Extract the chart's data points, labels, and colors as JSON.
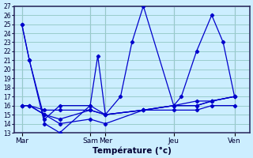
{
  "xlabel": "Température (°c)",
  "background_color": "#cceeff",
  "grid_color": "#99cccc",
  "line_color": "#0000cc",
  "ylim": [
    13,
    27
  ],
  "yticks": [
    13,
    14,
    15,
    16,
    17,
    18,
    19,
    20,
    21,
    22,
    23,
    24,
    25,
    26,
    27
  ],
  "xtick_labels": [
    "Mar",
    "Sam",
    "Mer",
    "Jeu",
    "Ven"
  ],
  "xtick_positions": [
    0,
    9,
    11,
    20,
    28
  ],
  "xlim": [
    -1,
    30
  ],
  "lines": [
    {
      "x": [
        0,
        1,
        3,
        5,
        9,
        10,
        11,
        13,
        14.5,
        16,
        20,
        21,
        23,
        25,
        26.5,
        28
      ],
      "y": [
        25,
        21,
        14,
        13,
        16,
        21.5,
        15,
        17,
        23,
        27,
        16,
        17,
        22,
        26,
        23,
        17
      ]
    },
    {
      "x": [
        0,
        1,
        3,
        5,
        9,
        11,
        16,
        20,
        23,
        25,
        28
      ],
      "y": [
        25,
        21,
        14.5,
        16,
        16,
        15,
        15.5,
        16,
        16.5,
        16.5,
        17
      ]
    },
    {
      "x": [
        0,
        1,
        3,
        5,
        9,
        11,
        16,
        20,
        23,
        25,
        28
      ],
      "y": [
        16,
        16,
        15.5,
        15.5,
        15.5,
        15,
        15.5,
        15.5,
        15.5,
        16,
        16
      ]
    },
    {
      "x": [
        0,
        1,
        3,
        5,
        9,
        11,
        16,
        20,
        23,
        25,
        28
      ],
      "y": [
        16,
        16,
        15,
        14.5,
        15.5,
        15,
        15.5,
        16,
        16,
        16.5,
        17
      ]
    },
    {
      "x": [
        0,
        1,
        3,
        5,
        9,
        11,
        16,
        20,
        23,
        25,
        28
      ],
      "y": [
        16,
        16,
        15,
        14,
        14.5,
        14,
        15.5,
        16,
        16,
        16.5,
        17
      ]
    }
  ]
}
